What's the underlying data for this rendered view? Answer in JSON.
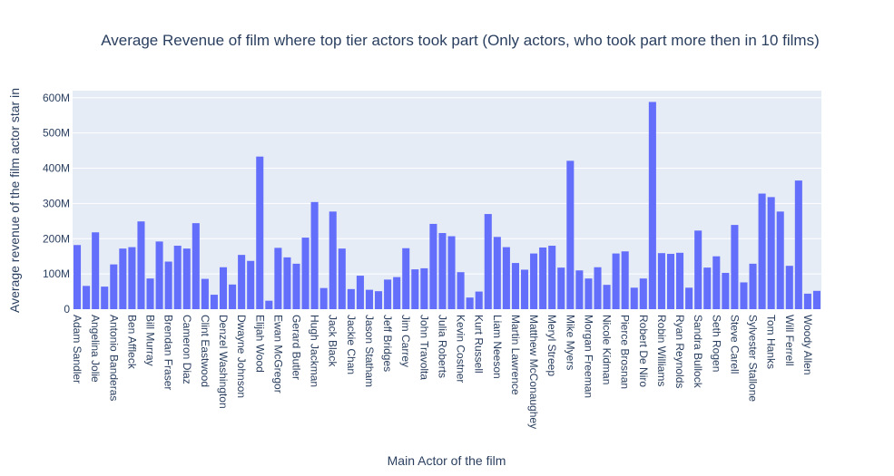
{
  "chart_data": {
    "type": "bar",
    "title": "Average Revenue of film where top tier actors took part (Only actors, who took part more then in 10 films)",
    "xlabel": "Main Actor of the film",
    "ylabel": "Average revenue of the film actor star in",
    "ylim": [
      0,
      620000000
    ],
    "yticks": [
      0,
      100000000,
      200000000,
      300000000,
      400000000,
      500000000,
      600000000
    ],
    "ytick_labels": [
      "0",
      "100M",
      "200M",
      "300M",
      "400M",
      "500M",
      "600M"
    ],
    "grid": true,
    "bar_color": "#636efa",
    "plot_bg": "#e5ecf6",
    "categories": [
      "Adam Sandler",
      "",
      "Angelina Jolie",
      "",
      "Antonio Banderas",
      "",
      "Ben Affleck",
      "",
      "Bill Murray",
      "",
      "Brendan Fraser",
      "",
      "Cameron Diaz",
      "",
      "Clint Eastwood",
      "",
      "Denzel Washington",
      "",
      "Dwayne Johnson",
      "",
      "Elijah Wood",
      "",
      "Ewan McGregor",
      "",
      "Gerard Butler",
      "",
      "Hugh Jackman",
      "",
      "Jack Black",
      "",
      "Jackie Chan",
      "",
      "Jason Statham",
      "",
      "Jeff Bridges",
      "",
      "Jim Carrey",
      "",
      "John Travolta",
      "",
      "Julia Roberts",
      "",
      "Kevin Costner",
      "",
      "Kurt Russell",
      "",
      "Liam Neeson",
      "",
      "Martin Lawrence",
      "",
      "Matthew McConaughey",
      "",
      "Meryl Streep",
      "",
      "Mike Myers",
      "",
      "Morgan Freeman",
      "",
      "Nicole Kidman",
      "",
      "Pierce Brosnan",
      "",
      "Robert De Niro",
      "",
      "Robin Williams",
      "",
      "Ryan Reynolds",
      "",
      "Sandra Bullock",
      "",
      "Seth Rogen",
      "",
      "Steve Carell",
      "",
      "Sylvester Stallone",
      "",
      "Tom Hanks",
      "",
      "Will Ferrell",
      "",
      "Woody Allen",
      ""
    ],
    "values": [
      182000000,
      66000000,
      218000000,
      64000000,
      127000000,
      172000000,
      176000000,
      249000000,
      87000000,
      192000000,
      135000000,
      180000000,
      172000000,
      244000000,
      86000000,
      41000000,
      119000000,
      70000000,
      154000000,
      137000000,
      433000000,
      24000000,
      174000000,
      147000000,
      129000000,
      203000000,
      304000000,
      60000000,
      277000000,
      172000000,
      57000000,
      95000000,
      55000000,
      51000000,
      84000000,
      91000000,
      173000000,
      113000000,
      116000000,
      242000000,
      216000000,
      207000000,
      105000000,
      33000000,
      50000000,
      270000000,
      205000000,
      176000000,
      131000000,
      112000000,
      158000000,
      175000000,
      180000000,
      118000000,
      421000000,
      110000000,
      87000000,
      119000000,
      69000000,
      158000000,
      164000000,
      61000000,
      87000000,
      588000000,
      159000000,
      157000000,
      160000000,
      61000000,
      223000000,
      118000000,
      150000000,
      103000000,
      239000000,
      76000000,
      129000000,
      328000000,
      318000000,
      277000000,
      123000000,
      365000000,
      44000000,
      52000000
    ]
  }
}
